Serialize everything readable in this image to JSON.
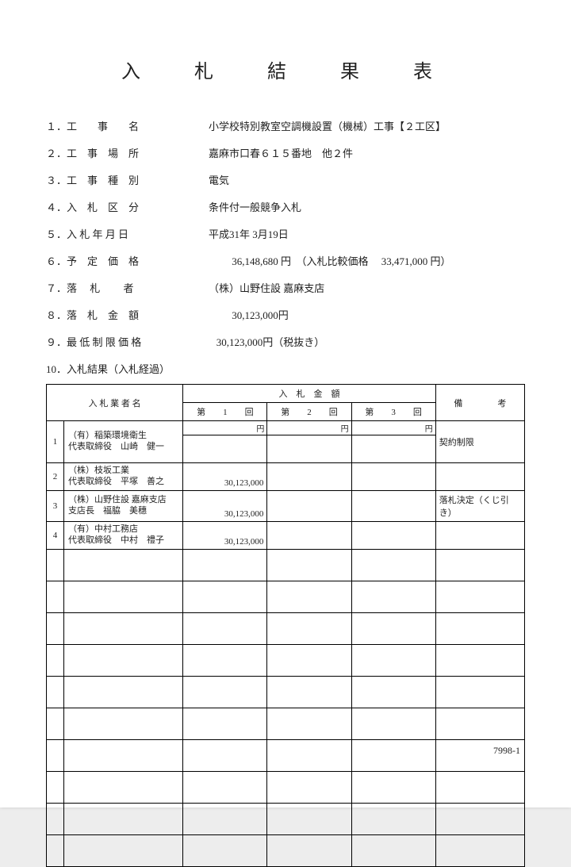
{
  "title": "入　札　結　果　表",
  "fields": [
    {
      "label": "１．工　　事　　名",
      "value": "小学校特別教室空調機設置（機械）工事【２工区】"
    },
    {
      "label": "２．工　事　場　所",
      "value": "嘉麻市口春６１５番地　他２件"
    },
    {
      "label": "３．工　事　種　別",
      "value": "電気"
    },
    {
      "label": "４．入　札　区　分",
      "value": "条件付一般競争入札"
    },
    {
      "label": "５．入 札 年 月 日",
      "value": "平成31年 3月19日"
    },
    {
      "label": "６．予　定　価　格",
      "value": "         36,148,680 円　（入札比較価格　 33,471,000 円）"
    },
    {
      "label": "７．落　 札 　　者",
      "value": "（株）山野住設 嘉麻支店"
    },
    {
      "label": "８．落　札　金　額",
      "value": "         30,123,000円"
    },
    {
      "label": "９．最 低 制 限 価 格",
      "value": "   30,123,000円（税抜き）"
    }
  ],
  "section10": "10．入札結果（入札経過）",
  "headers": {
    "bidder": "入 札 業 者 名",
    "amount": "入　札　金　額",
    "round1": "第　　1　　回",
    "round2": "第　　2　　回",
    "round3": "第　　3　　回",
    "remarks": "備　　　　考",
    "yen": "円"
  },
  "rows": [
    {
      "n": "1",
      "name": "（有）稲築環境衛生\n代表取締役　山崎　健一",
      "a1": "",
      "a2": "",
      "a3": "",
      "rem": "契約制限"
    },
    {
      "n": "2",
      "name": "（株）枝坂工業\n代表取締役　平塚　善之",
      "a1": "30,123,000",
      "a2": "",
      "a3": "",
      "rem": ""
    },
    {
      "n": "3",
      "name": "（株）山野住設 嘉麻支店\n支店長　福脇　美穗",
      "a1": "30,123,000",
      "a2": "",
      "a3": "",
      "rem": "落札決定（くじ引き）"
    },
    {
      "n": "4",
      "name": "（有）中村工務店\n代表取締役　中村　禮子",
      "a1": "30,123,000",
      "a2": "",
      "a3": "",
      "rem": ""
    }
  ],
  "emptyRows": 10,
  "footer": "7998-1"
}
